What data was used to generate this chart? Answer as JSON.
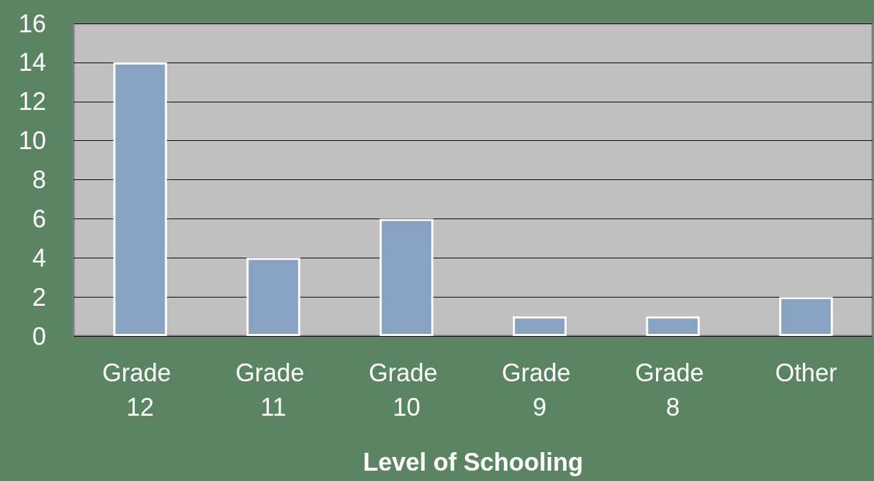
{
  "chart_data": {
    "type": "bar",
    "xlabel": "Level of Schooling",
    "categories": [
      "Grade 12",
      "Grade 11",
      "Grade 10",
      "Grade 9",
      "Grade 8",
      "Other"
    ],
    "values": [
      14,
      4,
      6,
      1,
      1,
      2
    ],
    "color": "#87a3c1",
    "ylim": [
      0,
      16
    ],
    "yticks": [
      0,
      2,
      4,
      6,
      8,
      10,
      12,
      14,
      16
    ],
    "grid": "y"
  }
}
